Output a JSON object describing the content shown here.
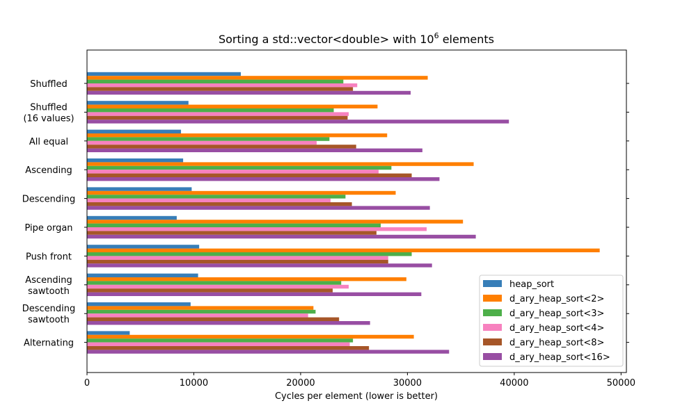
{
  "chart_data": {
    "type": "bar",
    "orientation": "horizontal",
    "title_main": "Sorting a std::vector<double> with 10",
    "title_exponent": "6",
    "title_suffix": " elements",
    "xlabel": "Cycles per element (lower is better)",
    "ylabel": "",
    "xlim": [
      0,
      50500
    ],
    "x_ticks": [
      "0",
      "10000",
      "20000",
      "30000",
      "40000",
      "50000"
    ],
    "x_tick_values": [
      0,
      10000,
      20000,
      30000,
      40000,
      50000
    ],
    "categories": [
      [
        "Shuffled"
      ],
      [
        "Shuffled",
        "(16 values)"
      ],
      [
        "All equal"
      ],
      [
        "Ascending"
      ],
      [
        "Descending"
      ],
      [
        "Pipe organ"
      ],
      [
        "Push front"
      ],
      [
        "Ascending",
        "sawtooth"
      ],
      [
        "Descending",
        "sawtooth"
      ],
      [
        "Alternating"
      ]
    ],
    "legend_position": "lower right",
    "grid": false,
    "series": [
      {
        "name": "heap_sort",
        "color": "#377eb8",
        "values": [
          14400,
          9500,
          8800,
          9000,
          9800,
          8400,
          10500,
          10400,
          9700,
          4000
        ]
      },
      {
        "name": "d_ary_heap_sort<2>",
        "color": "#ff7f00",
        "values": [
          31900,
          27200,
          28100,
          36200,
          28900,
          35200,
          48000,
          29900,
          21200,
          30600
        ]
      },
      {
        "name": "d_ary_heap_sort<3>",
        "color": "#4daf4a",
        "values": [
          24000,
          23100,
          22700,
          28500,
          24200,
          27500,
          30400,
          23800,
          21400,
          24900
        ]
      },
      {
        "name": "d_ary_heap_sort<4>",
        "color": "#f781bf",
        "values": [
          25300,
          24500,
          21500,
          27300,
          22800,
          31800,
          28200,
          24500,
          20700,
          24600
        ]
      },
      {
        "name": "d_ary_heap_sort<8>",
        "color": "#a65628",
        "values": [
          24900,
          24400,
          25200,
          30400,
          24800,
          27100,
          28200,
          23000,
          23600,
          26400
        ]
      },
      {
        "name": "d_ary_heap_sort<16>",
        "color": "#984ea3",
        "values": [
          30300,
          39500,
          31400,
          33000,
          32100,
          36400,
          32300,
          31300,
          26500,
          33900
        ]
      }
    ]
  }
}
